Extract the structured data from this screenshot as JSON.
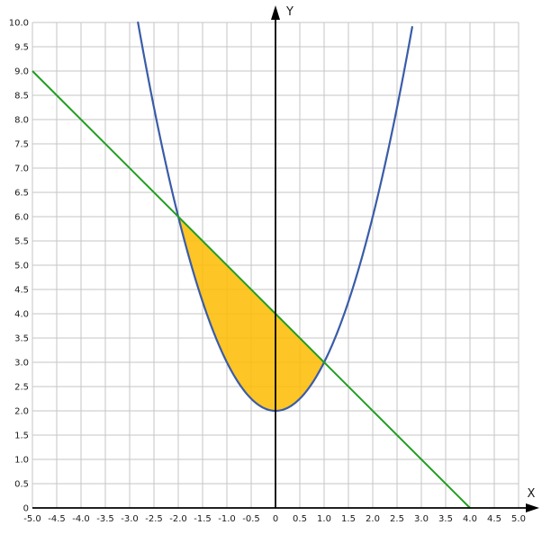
{
  "chart_data": {
    "type": "line",
    "title": "",
    "description": "Parabola and straight line with shaded area between their intersection points",
    "grid": true,
    "x_axis": {
      "label": "X",
      "min": -5,
      "max": 5,
      "tick_step": 0.5,
      "tick_labels": [
        "-5.0",
        "-4.5",
        "-4.0",
        "-3.5",
        "-3.0",
        "-2.5",
        "-2.0",
        "-1.5",
        "-1.0",
        "-0.5",
        "0",
        "0.5",
        "1.0",
        "1.5",
        "2.0",
        "2.5",
        "3.0",
        "3.5",
        "4.0",
        "4.5",
        "5.0"
      ]
    },
    "y_axis": {
      "label": "Y",
      "min": 0,
      "max": 10,
      "tick_step": 0.5,
      "tick_labels": [
        "0",
        "0.5",
        "1.0",
        "1.5",
        "2.0",
        "2.5",
        "3.0",
        "3.5",
        "4.0",
        "4.5",
        "5.0",
        "5.5",
        "6.0",
        "6.5",
        "7.0",
        "7.5",
        "8.0",
        "8.5",
        "9.0",
        "9.5",
        "10.0"
      ]
    },
    "series": [
      {
        "name": "parabola",
        "equation": "y = x^2 + 2",
        "type": "quadratic",
        "a": 1,
        "b": 0,
        "c": 2,
        "x_range": [
          -2.8284,
          2.8284
        ],
        "color": "#3a5ca8",
        "stroke_width": 2.2
      },
      {
        "name": "line",
        "equation": "y = -x + 4",
        "type": "linear",
        "slope": -1,
        "intercept": 4,
        "x_range": [
          -5,
          4
        ],
        "color": "#1f9e1f",
        "stroke_width": 2
      }
    ],
    "shaded_region": {
      "between": [
        "line",
        "parabola"
      ],
      "x_range": [
        -2,
        1
      ],
      "fill": "#fdbb00",
      "opacity": 0.85
    },
    "key_points": {
      "intersections": [
        {
          "x": -2,
          "y": 6
        },
        {
          "x": 1,
          "y": 3
        }
      ],
      "parabola_vertex": {
        "x": 0,
        "y": 2
      },
      "line_x_intercept": {
        "x": 4,
        "y": 0
      },
      "line_left_end": {
        "x": -5,
        "y": 9
      },
      "line_y_intercept": {
        "x": 0,
        "y": 4
      }
    },
    "colors": {
      "grid": "#c6c6c6",
      "axis": "#000000",
      "background": "#ffffff"
    }
  }
}
